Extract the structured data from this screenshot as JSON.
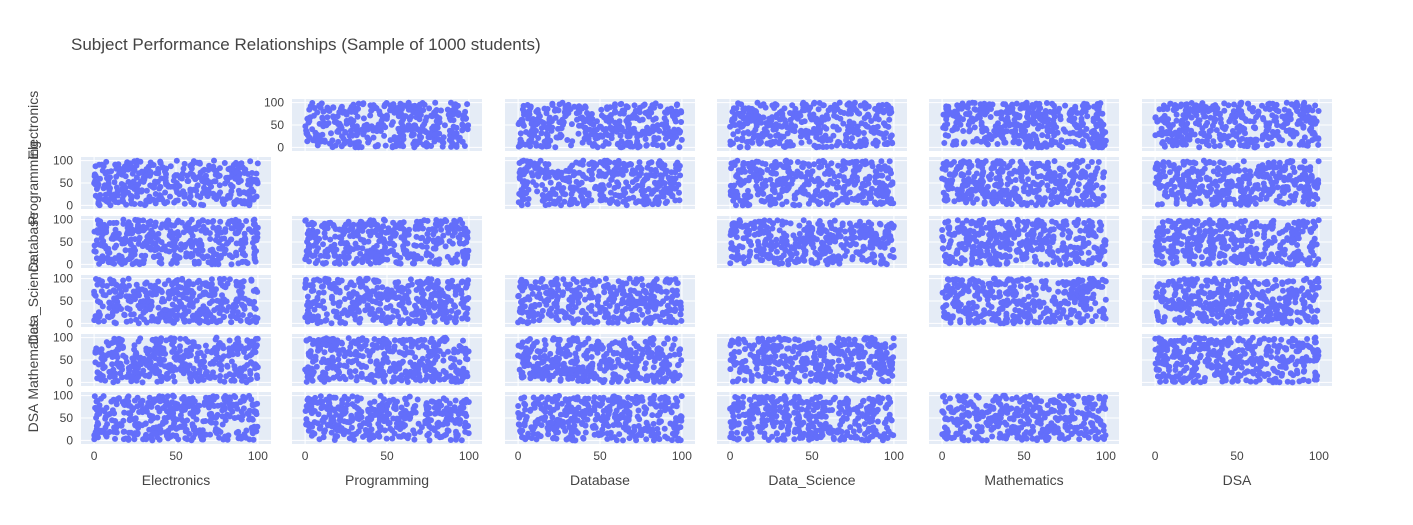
{
  "chart_data": {
    "type": "scatter",
    "title": "Subject Performance Relationships (Sample of 1000 students)",
    "subjects": [
      "Electronics",
      "Programming",
      "Database",
      "Data_Science",
      "Mathematics",
      "DSA"
    ],
    "x_ticks": [
      "0",
      "50",
      "100"
    ],
    "y_ticks": [
      "100",
      "50",
      "0"
    ],
    "xlim": [
      -8,
      108
    ],
    "ylim": [
      -8,
      108
    ],
    "diagonal_visible": false,
    "grid": true,
    "sample_size": 1000,
    "value_range": [
      0,
      100
    ],
    "marker_color": "#636efa",
    "plot_bg": "#e5ecf6"
  }
}
